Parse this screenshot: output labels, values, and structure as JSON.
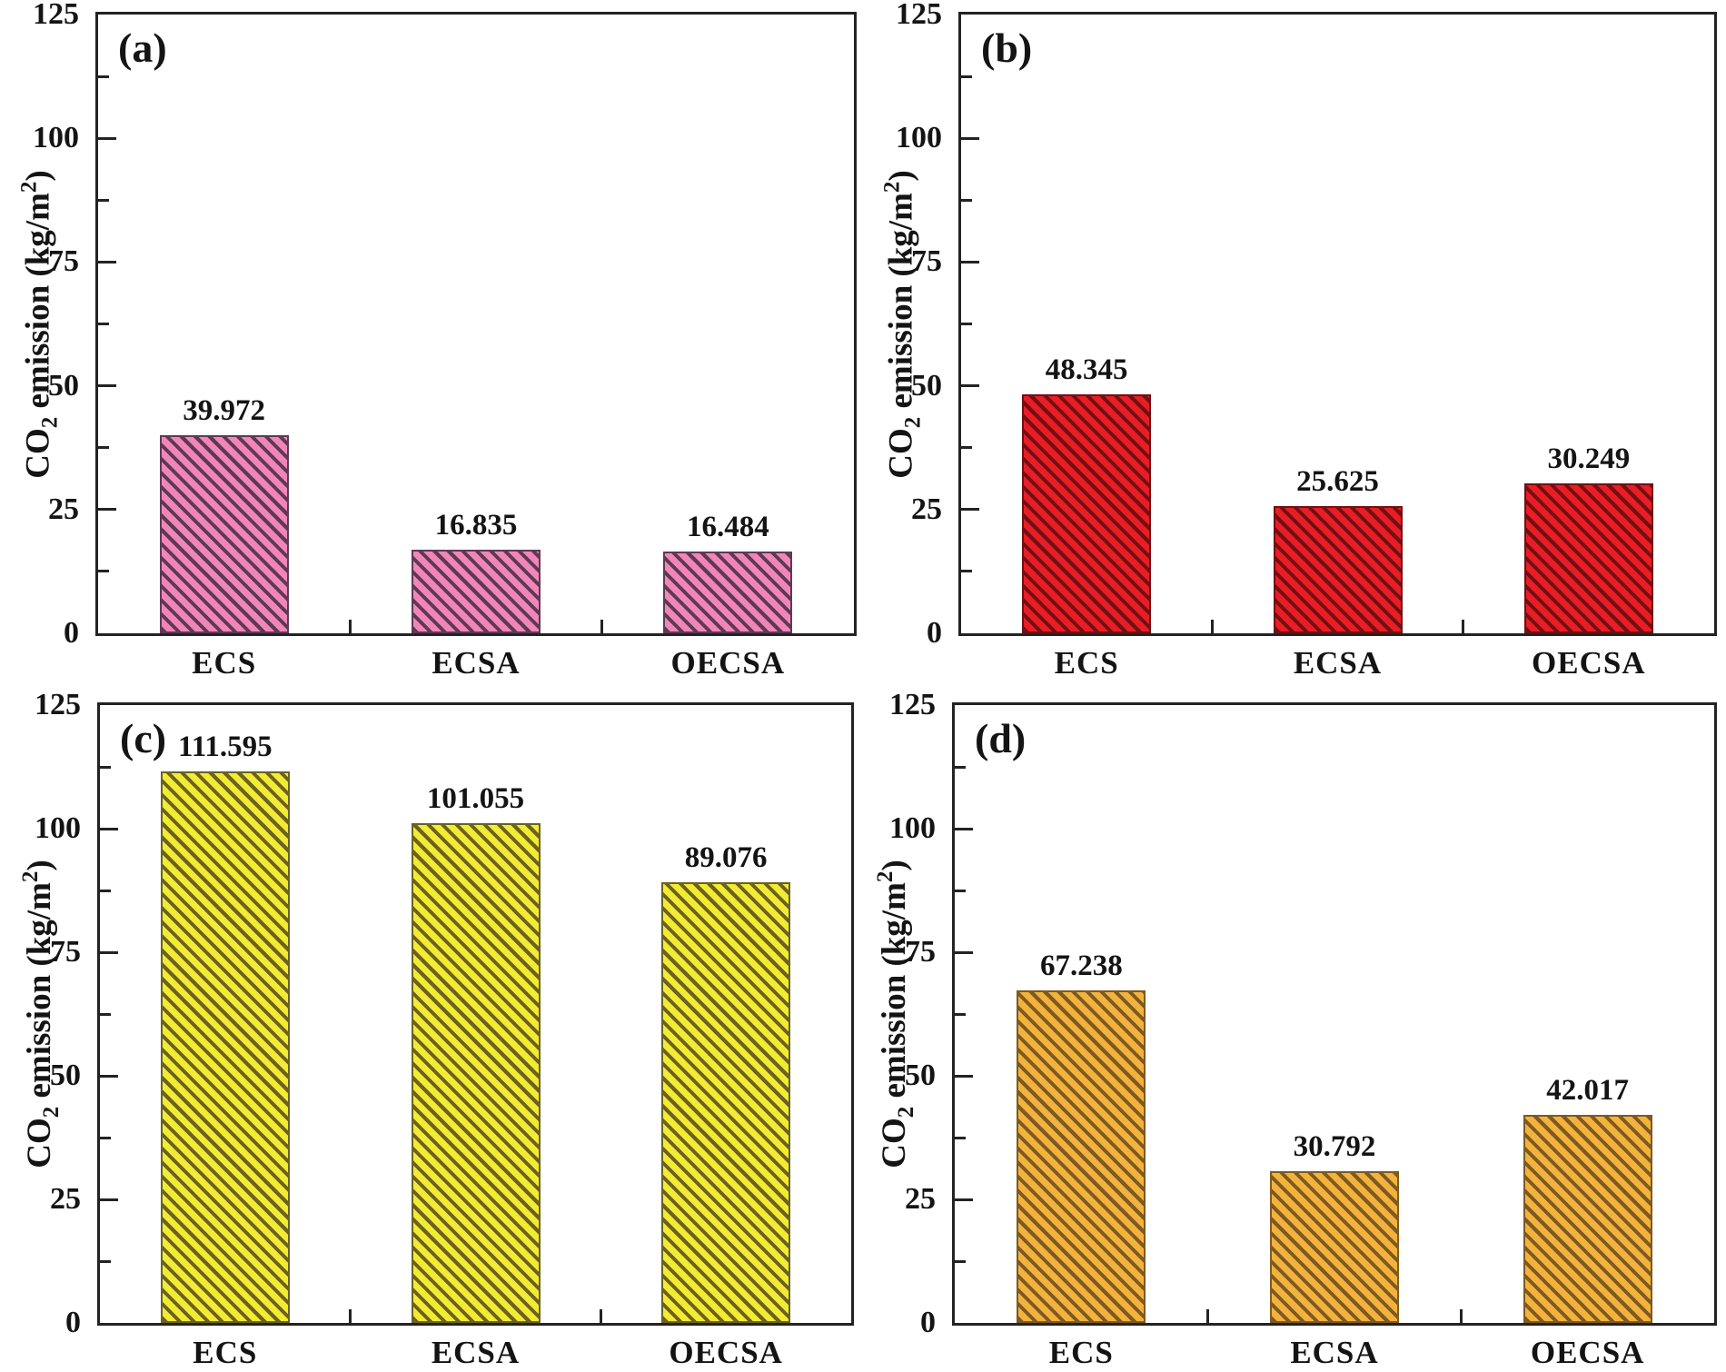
{
  "figure": {
    "background": "#ffffff",
    "axis_color": "#232323",
    "text_color": "#141414"
  },
  "axis": {
    "ylabel_parts": {
      "pre": "CO",
      "sub": "2",
      "mid": " emission (kg/m",
      "sup": "2",
      "post": ")"
    },
    "ytick_labels": [
      "0",
      "25",
      "50",
      "75",
      "100",
      "125"
    ]
  },
  "chart_data": [
    {
      "type": "bar",
      "panel_label": "(a)",
      "categories": [
        "ECS",
        "ECSA",
        "OECSA"
      ],
      "values": [
        39.972,
        16.835,
        16.484
      ],
      "value_labels": [
        "39.972",
        "16.835",
        "16.484"
      ],
      "ylabel": "CO2 emission (kg/m2)",
      "ylim": [
        0,
        125
      ],
      "yticks": [
        0,
        25,
        50,
        75,
        100,
        125
      ],
      "minor_tick_step": 12.5,
      "grid": false,
      "legend": "none",
      "bar_fill": "#f185ba",
      "bar_hatch": "#5e3a52"
    },
    {
      "type": "bar",
      "panel_label": "(b)",
      "categories": [
        "ECS",
        "ECSA",
        "OECSA"
      ],
      "values": [
        48.345,
        25.625,
        30.249
      ],
      "value_labels": [
        "48.345",
        "25.625",
        "30.249"
      ],
      "ylabel": "CO2 emission (kg/m2)",
      "ylim": [
        0,
        125
      ],
      "yticks": [
        0,
        25,
        50,
        75,
        100,
        125
      ],
      "minor_tick_step": 12.5,
      "grid": false,
      "legend": "none",
      "bar_fill": "#e91d24",
      "bar_hatch": "#701014"
    },
    {
      "type": "bar",
      "panel_label": "(c)",
      "categories": [
        "ECS",
        "ECSA",
        "OECSA"
      ],
      "values": [
        111.595,
        101.055,
        89.076
      ],
      "value_labels": [
        "111.595",
        "101.055",
        "89.076"
      ],
      "ylabel": "CO2 emission (kg/m2)",
      "ylim": [
        0,
        125
      ],
      "yticks": [
        0,
        25,
        50,
        75,
        100,
        125
      ],
      "minor_tick_step": 12.5,
      "grid": false,
      "legend": "none",
      "bar_fill": "#f3ea33",
      "bar_hatch": "#6a6220"
    },
    {
      "type": "bar",
      "panel_label": "(d)",
      "categories": [
        "ECS",
        "ECSA",
        "OECSA"
      ],
      "values": [
        67.238,
        30.792,
        42.017
      ],
      "value_labels": [
        "67.238",
        "30.792",
        "42.017"
      ],
      "ylabel": "CO2 emission (kg/m2)",
      "ylim": [
        0,
        125
      ],
      "yticks": [
        0,
        25,
        50,
        75,
        100,
        125
      ],
      "minor_tick_step": 12.5,
      "grid": false,
      "legend": "none",
      "bar_fill": "#f3b23c",
      "bar_hatch": "#7d5a22"
    }
  ]
}
